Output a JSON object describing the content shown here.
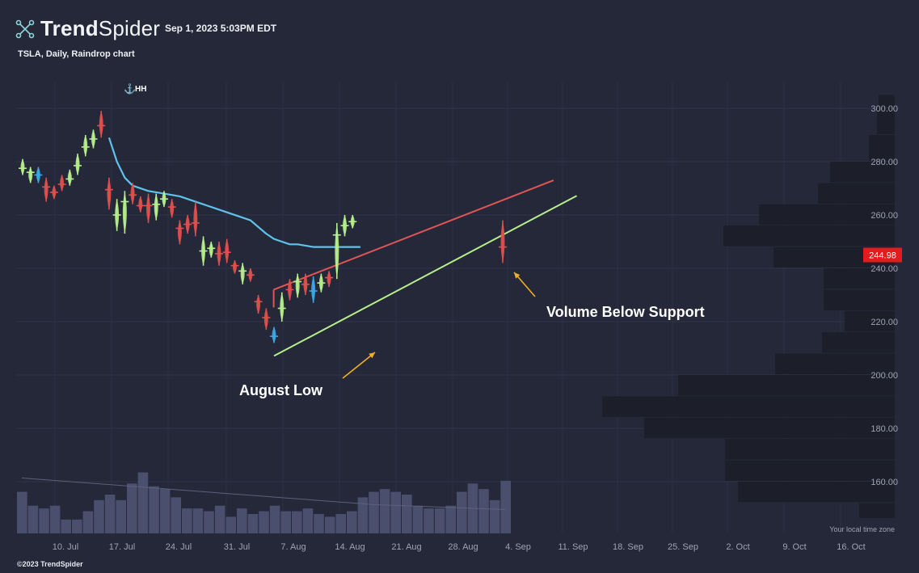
{
  "brand": {
    "name_bold": "Trend",
    "name_light": "Spider"
  },
  "timestamp": "Sep 1, 2023 5:03PM EDT",
  "subtitle": "TSLA, Daily, Raindrop chart",
  "footer": "©2023 TrendSpider",
  "colors": {
    "background": "#252839",
    "up": "#b7ef8c",
    "down": "#e0504c",
    "neutral": "#3aa8e8",
    "ma": "#5ec2ea",
    "resistance": "#e05555",
    "support": "#b7ef8c",
    "arrow": "#f0b020",
    "price_tag": "#e01c1c",
    "volume": "#4b4f6e",
    "profile": "#1c1e29"
  },
  "chart_data": {
    "type": "candlestick",
    "ylim": [
      145,
      305
    ],
    "y_ticks": [
      160,
      180,
      200,
      220,
      240,
      260,
      280,
      300
    ],
    "y_tick_labels": [
      "160.00",
      "180.00",
      "200.00",
      "220.00",
      "240.00",
      "260.00",
      "280.00",
      "300.00"
    ],
    "x_tick_labels": [
      "10. Jul",
      "17. Jul",
      "24. Jul",
      "31. Jul",
      "7. Aug",
      "14. Aug",
      "21. Aug",
      "28. Aug",
      "4. Sep",
      "11. Sep",
      "18. Sep",
      "25. Sep",
      "2. Oct",
      "9. Oct",
      "16. Oct"
    ],
    "last_price_label": "244.98",
    "last_price": 245,
    "timezone_note": "Your local time zone",
    "marker_label": "HH",
    "bars": [
      {
        "date": "Jul 5",
        "open": 276,
        "high": 281,
        "low": 275,
        "close": 279,
        "color": "up"
      },
      {
        "date": "Jul 6",
        "open": 276,
        "high": 278,
        "low": 272,
        "close": 276,
        "color": "up"
      },
      {
        "date": "Jul 7",
        "open": 276,
        "high": 278,
        "low": 272,
        "close": 274,
        "color": "neutral"
      },
      {
        "date": "Jul 10",
        "open": 272,
        "high": 274,
        "low": 265,
        "close": 269,
        "color": "down"
      },
      {
        "date": "Jul 11",
        "open": 270,
        "high": 271,
        "low": 266,
        "close": 267,
        "color": "down"
      },
      {
        "date": "Jul 12",
        "open": 270,
        "high": 275,
        "low": 269,
        "close": 273,
        "color": "down"
      },
      {
        "date": "Jul 13",
        "open": 272,
        "high": 277,
        "low": 271,
        "close": 275,
        "color": "up"
      },
      {
        "date": "Jul 14",
        "open": 276,
        "high": 283,
        "low": 275,
        "close": 281,
        "color": "up"
      },
      {
        "date": "Jul 17",
        "open": 283,
        "high": 290,
        "low": 282,
        "close": 288,
        "color": "up"
      },
      {
        "date": "Jul 18",
        "open": 286,
        "high": 292,
        "low": 285,
        "close": 291,
        "color": "up"
      },
      {
        "date": "Jul 19",
        "open": 296,
        "high": 299,
        "low": 289,
        "close": 291,
        "color": "down"
      },
      {
        "date": "Jul 20",
        "open": 272,
        "high": 274,
        "low": 262,
        "close": 267,
        "color": "down"
      },
      {
        "date": "Jul 21",
        "open": 260,
        "high": 266,
        "low": 254,
        "close": 260,
        "color": "up"
      },
      {
        "date": "Jul 24",
        "open": 262,
        "high": 269,
        "low": 253,
        "close": 268,
        "color": "up"
      },
      {
        "date": "Jul 25",
        "open": 269,
        "high": 272,
        "low": 264,
        "close": 266,
        "color": "down"
      },
      {
        "date": "Jul 26",
        "open": 265,
        "high": 267,
        "low": 261,
        "close": 262,
        "color": "down"
      },
      {
        "date": "Jul 27",
        "open": 266,
        "high": 268,
        "low": 257,
        "close": 261,
        "color": "down"
      },
      {
        "date": "Jul 28",
        "open": 262,
        "high": 268,
        "low": 258,
        "close": 266,
        "color": "up"
      },
      {
        "date": "Jul 31",
        "open": 265,
        "high": 269,
        "low": 263,
        "close": 267,
        "color": "up"
      },
      {
        "date": "Aug 1",
        "open": 264,
        "high": 266,
        "low": 259,
        "close": 262,
        "color": "down"
      },
      {
        "date": "Aug 2",
        "open": 256,
        "high": 258,
        "low": 249,
        "close": 254,
        "color": "down"
      },
      {
        "date": "Aug 3",
        "open": 258,
        "high": 260,
        "low": 253,
        "close": 255,
        "color": "down"
      },
      {
        "date": "Aug 4",
        "open": 261,
        "high": 265,
        "low": 252,
        "close": 253,
        "color": "down"
      },
      {
        "date": "Aug 7",
        "open": 246,
        "high": 252,
        "low": 241,
        "close": 247,
        "color": "up"
      },
      {
        "date": "Aug 8",
        "open": 246,
        "high": 250,
        "low": 244,
        "close": 249,
        "color": "up"
      },
      {
        "date": "Aug 9",
        "open": 248,
        "high": 250,
        "low": 241,
        "close": 243,
        "color": "down"
      },
      {
        "date": "Aug 10",
        "open": 247,
        "high": 251,
        "low": 242,
        "close": 245,
        "color": "down"
      },
      {
        "date": "Aug 11",
        "open": 242,
        "high": 243,
        "low": 238,
        "close": 240,
        "color": "down"
      },
      {
        "date": "Aug 14",
        "open": 238,
        "high": 242,
        "low": 234,
        "close": 240,
        "color": "up"
      },
      {
        "date": "Aug 15",
        "open": 239,
        "high": 240,
        "low": 235,
        "close": 236,
        "color": "down"
      },
      {
        "date": "Aug 16",
        "open": 229,
        "high": 230,
        "low": 223,
        "close": 226,
        "color": "down"
      },
      {
        "date": "Aug 17",
        "open": 223,
        "high": 225,
        "low": 217,
        "close": 220,
        "color": "down"
      },
      {
        "date": "Aug 18",
        "open": 214,
        "high": 218,
        "low": 212,
        "close": 215,
        "color": "neutral"
      },
      {
        "date": "Aug 21",
        "open": 222,
        "high": 231,
        "low": 220,
        "close": 228,
        "color": "up"
      },
      {
        "date": "Aug 22",
        "open": 231,
        "high": 236,
        "low": 228,
        "close": 233,
        "color": "down"
      },
      {
        "date": "Aug 23",
        "open": 234,
        "high": 238,
        "low": 229,
        "close": 236,
        "color": "up"
      },
      {
        "date": "Aug 24",
        "open": 236,
        "high": 238,
        "low": 230,
        "close": 232,
        "color": "down"
      },
      {
        "date": "Aug 25",
        "open": 233,
        "high": 237,
        "low": 227,
        "close": 230,
        "color": "neutral"
      },
      {
        "date": "Aug 28",
        "open": 233,
        "high": 238,
        "low": 231,
        "close": 236,
        "color": "up"
      },
      {
        "date": "Aug 29",
        "open": 238,
        "high": 239,
        "low": 233,
        "close": 235,
        "color": "down"
      },
      {
        "date": "Aug 30",
        "open": 250,
        "high": 257,
        "low": 236,
        "close": 255,
        "color": "up"
      },
      {
        "date": "Aug 31",
        "open": 255,
        "high": 260,
        "low": 252,
        "close": 257,
        "color": "up"
      },
      {
        "date": "Sep 1",
        "open": 257,
        "high": 260,
        "low": 255,
        "close": 258,
        "color": "up"
      },
      {
        "date": "Sep 1b",
        "open": 251,
        "high": 258,
        "low": 242,
        "close": 245,
        "color": "down"
      }
    ],
    "volume": [
      155,
      150,
      149,
      150,
      145,
      145,
      148,
      152,
      154,
      152,
      158,
      162,
      157,
      156,
      153,
      149,
      149,
      148,
      150,
      146,
      149,
      147,
      148,
      150,
      148,
      148,
      149,
      147,
      146,
      147,
      148,
      153,
      155,
      156,
      155,
      154,
      150,
      149,
      149,
      150,
      155,
      158,
      156,
      152,
      159
    ],
    "volume_range": [
      140,
      175
    ],
    "moving_average": [
      [
        11,
        289
      ],
      [
        12,
        280
      ],
      [
        13,
        274
      ],
      [
        14,
        271
      ],
      [
        16,
        269
      ],
      [
        18,
        268
      ],
      [
        20,
        267
      ],
      [
        23,
        264
      ],
      [
        26,
        261
      ],
      [
        29,
        258
      ],
      [
        31,
        253
      ],
      [
        32,
        251
      ],
      [
        33,
        250
      ],
      [
        34,
        249
      ],
      [
        35,
        249
      ],
      [
        37,
        248
      ],
      [
        40,
        248
      ],
      [
        43,
        248
      ]
    ],
    "resistance_line": {
      "from": [
        30,
        232
      ],
      "to": [
        47,
        273
      ]
    },
    "support_line": {
      "from": [
        32,
        212
      ],
      "to": [
        48,
        266
      ]
    },
    "volume_profile": [
      {
        "low": 300,
        "high": 305,
        "value": 20
      },
      {
        "low": 290,
        "high": 300,
        "value": 22
      },
      {
        "low": 280,
        "high": 290,
        "value": 32
      },
      {
        "low": 272,
        "high": 280,
        "value": 80
      },
      {
        "low": 264,
        "high": 272,
        "value": 95
      },
      {
        "low": 256,
        "high": 264,
        "value": 168
      },
      {
        "low": 248,
        "high": 256,
        "value": 212
      },
      {
        "low": 240,
        "high": 248,
        "value": 150
      },
      {
        "low": 232,
        "high": 240,
        "value": 88
      },
      {
        "low": 224,
        "high": 232,
        "value": 88
      },
      {
        "low": 216,
        "high": 224,
        "value": 62
      },
      {
        "low": 208,
        "high": 216,
        "value": 90
      },
      {
        "low": 200,
        "high": 208,
        "value": 148
      },
      {
        "low": 192,
        "high": 200,
        "value": 268
      },
      {
        "low": 184,
        "high": 192,
        "value": 362
      },
      {
        "low": 176,
        "high": 184,
        "value": 310
      },
      {
        "low": 168,
        "high": 176,
        "value": 210
      },
      {
        "low": 160,
        "high": 168,
        "value": 210
      },
      {
        "low": 152,
        "high": 160,
        "value": 194
      },
      {
        "low": 146,
        "high": 152,
        "value": 44
      }
    ],
    "annotations": [
      {
        "text": "August Low",
        "at": [
          26,
          200
        ]
      },
      {
        "text": "Volume Below Support",
        "at": [
          50,
          230
        ]
      }
    ]
  }
}
